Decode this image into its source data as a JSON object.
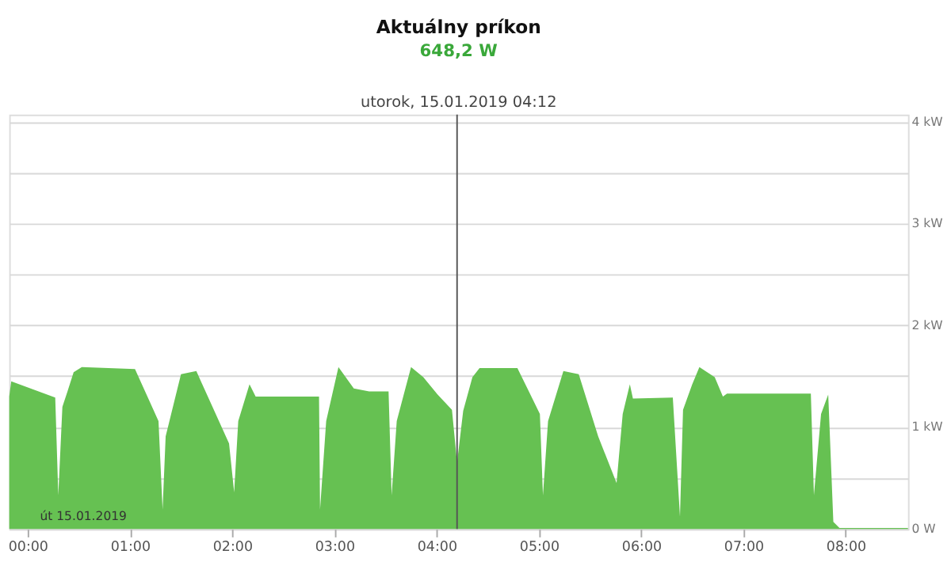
{
  "chart_data": {
    "type": "area",
    "title": "Aktuálny príkon",
    "subtitle": "648,2 W",
    "annotations": [
      "utorok, 15.01.2019 04:12",
      "út 15.01.2019"
    ],
    "x": [
      -0.18,
      -0.16,
      0.27,
      0.3,
      0.34,
      0.39,
      0.45,
      0.53,
      1.05,
      1.28,
      1.32,
      1.35,
      1.5,
      1.65,
      1.97,
      2.02,
      2.06,
      2.17,
      2.23,
      2.85,
      2.86,
      2.92,
      3.04,
      3.19,
      3.34,
      3.53,
      3.56,
      3.61,
      3.75,
      3.87,
      4.01,
      4.15,
      4.2,
      4.26,
      4.35,
      4.42,
      4.79,
      5.01,
      5.04,
      5.09,
      5.24,
      5.39,
      5.58,
      5.76,
      5.82,
      5.89,
      5.92,
      6.31,
      6.38,
      6.41,
      6.5,
      6.57,
      6.72,
      6.8,
      6.84,
      7.66,
      7.69,
      7.76,
      7.83,
      7.88,
      7.94,
      8.61
    ],
    "series": [
      {
        "color": "#66c152",
        "values": [
          1.3,
          1.45,
          1.29,
          0.33,
          1.2,
          1.35,
          1.54,
          1.59,
          1.57,
          1.06,
          0.19,
          0.91,
          1.52,
          1.55,
          0.84,
          0.36,
          1.06,
          1.42,
          1.3,
          1.3,
          0.19,
          1.06,
          1.59,
          1.38,
          1.35,
          1.35,
          0.33,
          1.06,
          1.59,
          1.49,
          1.32,
          1.17,
          0.65,
          1.16,
          1.49,
          1.58,
          1.58,
          1.13,
          0.33,
          1.06,
          1.55,
          1.52,
          0.91,
          0.45,
          1.13,
          1.42,
          1.28,
          1.29,
          0.12,
          1.17,
          1.42,
          1.59,
          1.49,
          1.3,
          1.33,
          1.33,
          0.33,
          1.13,
          1.32,
          0.07,
          0.01,
          0.01
        ]
      }
    ],
    "xlim": [
      -0.18,
      8.61
    ],
    "xticks": [
      {
        "value": 0,
        "label": "00:00"
      },
      {
        "value": 1,
        "label": "01:00"
      },
      {
        "value": 2,
        "label": "02:00"
      },
      {
        "value": 3,
        "label": "03:00"
      },
      {
        "value": 4,
        "label": "04:00"
      },
      {
        "value": 5,
        "label": "05:00"
      },
      {
        "value": 6,
        "label": "06:00"
      },
      {
        "value": 7,
        "label": "07:00"
      },
      {
        "value": 8,
        "label": "08:00"
      }
    ],
    "ylim": [
      0,
      4.07
    ],
    "yticks": [
      {
        "value": 0,
        "label": "0 W"
      },
      {
        "value": 0.5,
        "label": null
      },
      {
        "value": 1,
        "label": "1 kW"
      },
      {
        "value": 1.5,
        "label": null
      },
      {
        "value": 2,
        "label": "2 kW"
      },
      {
        "value": 2.5,
        "label": null
      },
      {
        "value": 3,
        "label": "3 kW"
      },
      {
        "value": 3.5,
        "label": null
      },
      {
        "value": 4,
        "label": "4 kW"
      }
    ],
    "ref_lines": [
      {
        "axis": "x",
        "value": 4.2,
        "color": "#555555"
      }
    ],
    "grid": "y"
  }
}
